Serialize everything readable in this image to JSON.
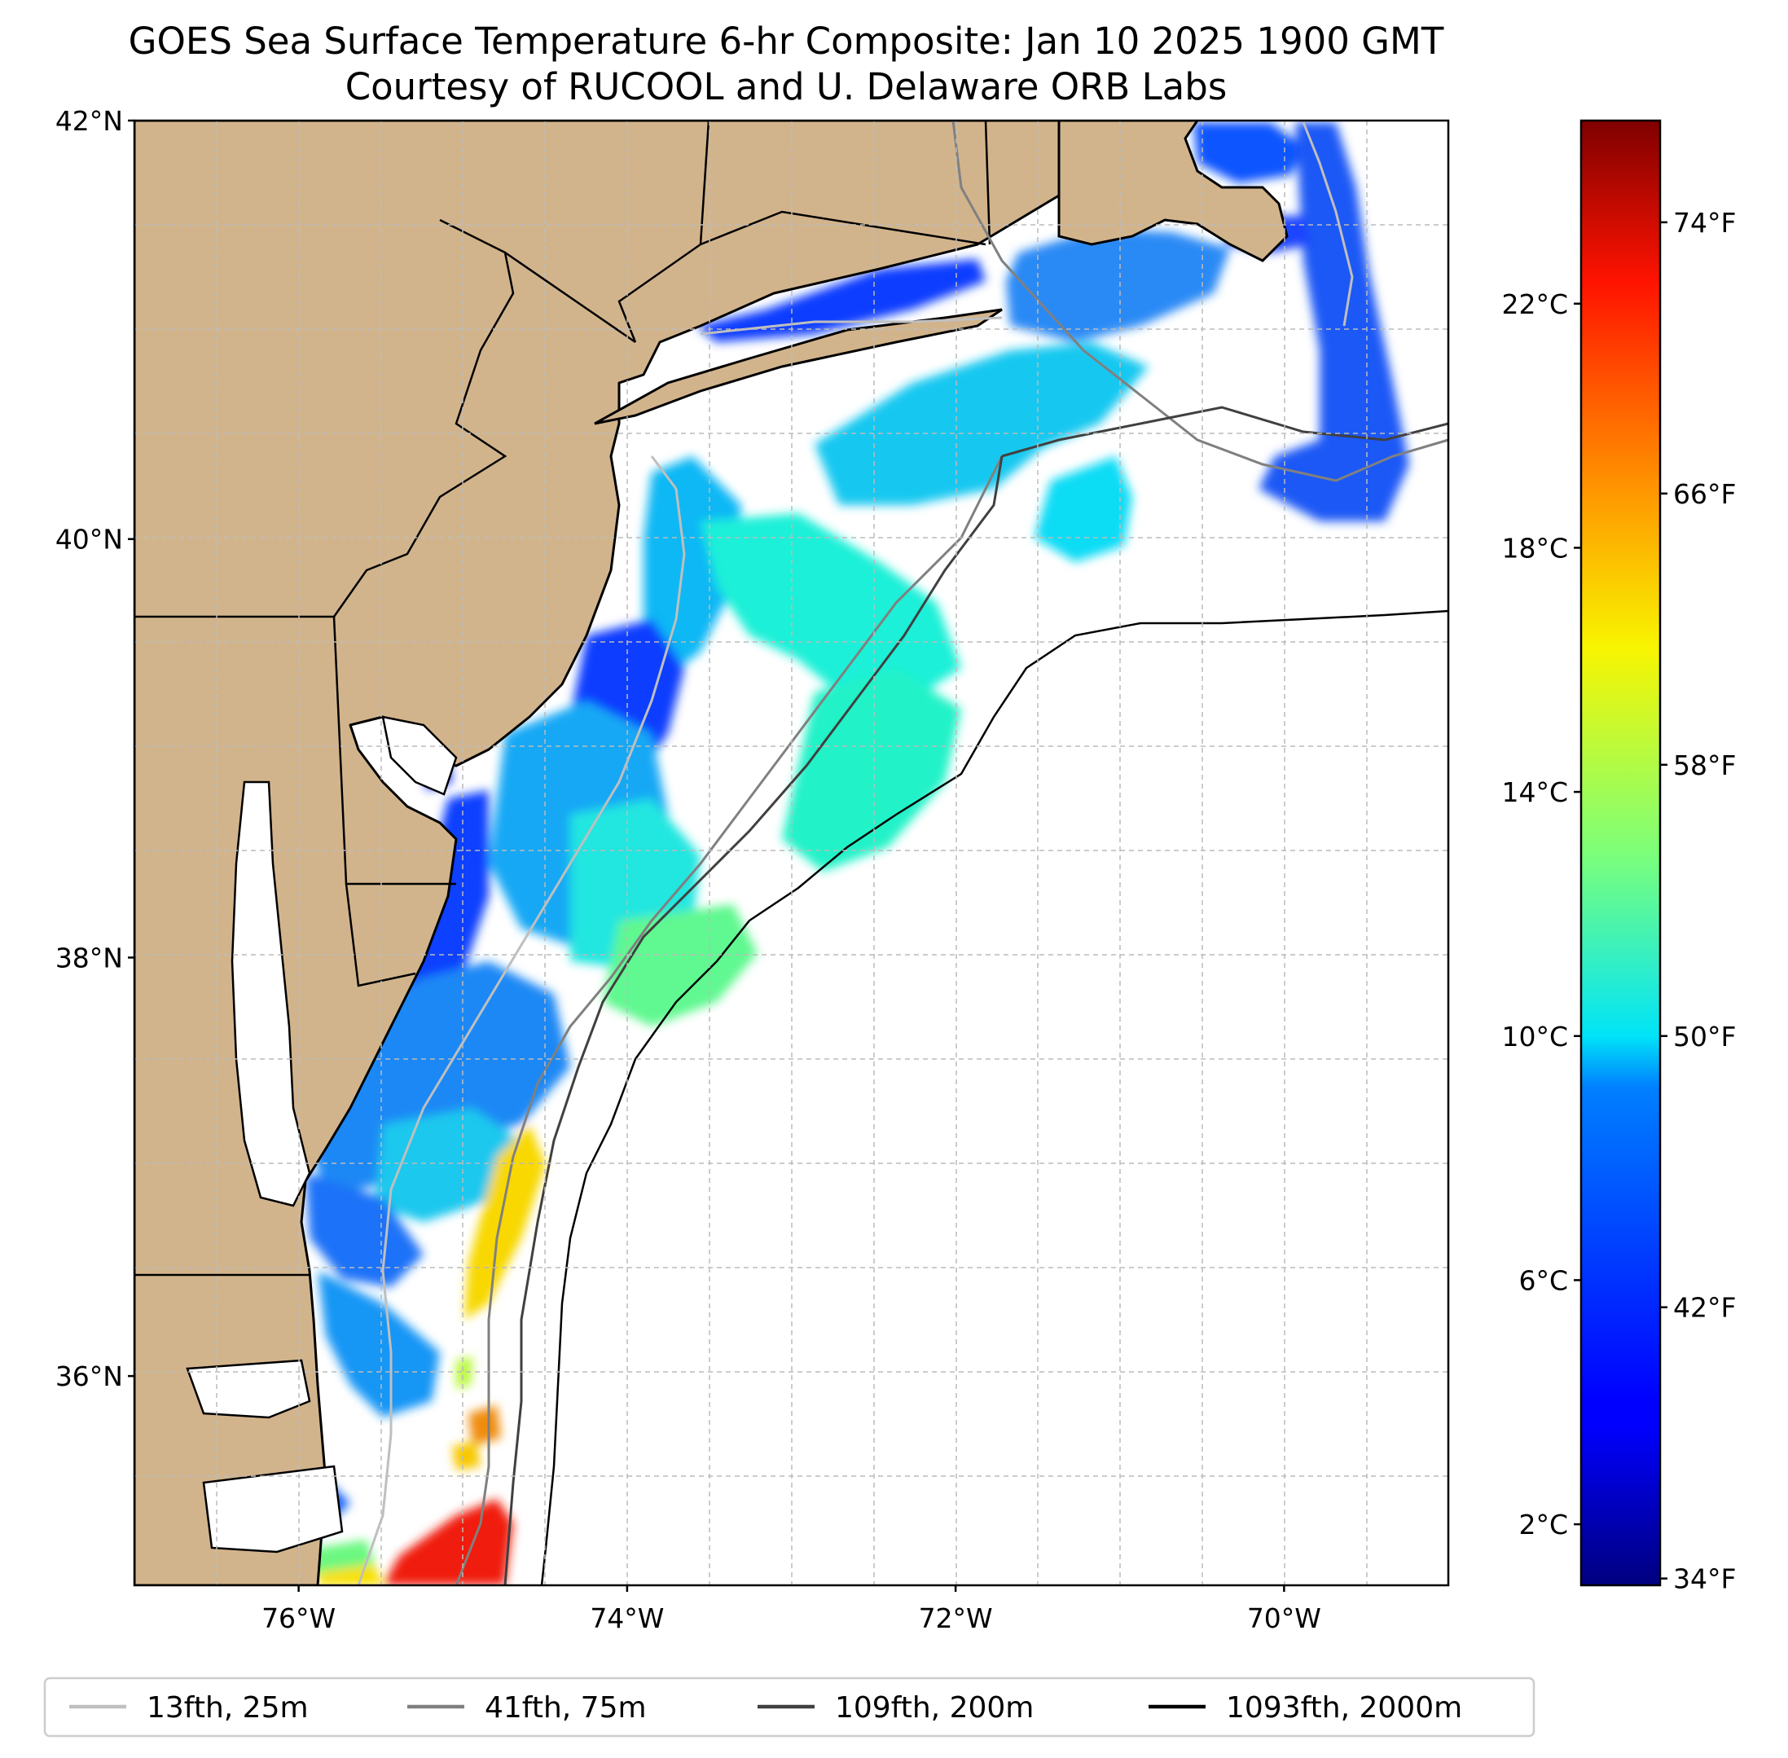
{
  "title": {
    "line1": "GOES Sea Surface Temperature 6-hr Composite: Jan 10 2025 1900 GMT",
    "line2": "Courtesy of RUCOOL and U. Delaware ORB Labs"
  },
  "map": {
    "extent": {
      "lon_min": -77,
      "lon_max": -69,
      "lat_min": 35.0,
      "lat_max": 42
    },
    "lat_ticks": [
      {
        "value": 42,
        "label": "42°N"
      },
      {
        "value": 40,
        "label": "40°N"
      },
      {
        "value": 38,
        "label": "38°N"
      },
      {
        "value": 36,
        "label": "36°N"
      }
    ],
    "lon_ticks": [
      {
        "value": -76,
        "label": "76°W"
      },
      {
        "value": -74,
        "label": "74°W"
      },
      {
        "value": -72,
        "label": "72°W"
      },
      {
        "value": -70,
        "label": "70°W"
      }
    ],
    "grid": true,
    "colors": {
      "land": "#d2b48c",
      "ocean": "#ffffff",
      "coast": "#000000",
      "grid": "#bbbbbb"
    }
  },
  "colorbar": {
    "colormap": "jet",
    "range_c": [
      1,
      25
    ],
    "celsius_ticks": [
      {
        "value": 2,
        "label": "2°C"
      },
      {
        "value": 6,
        "label": "6°C"
      },
      {
        "value": 10,
        "label": "10°C"
      },
      {
        "value": 14,
        "label": "14°C"
      },
      {
        "value": 18,
        "label": "18°C"
      },
      {
        "value": 22,
        "label": "22°C"
      }
    ],
    "fahrenheit_ticks": [
      {
        "value": 34,
        "label": "34°F"
      },
      {
        "value": 42,
        "label": "42°F"
      },
      {
        "value": 50,
        "label": "50°F"
      },
      {
        "value": 58,
        "label": "58°F"
      },
      {
        "value": 66,
        "label": "66°F"
      },
      {
        "value": 74,
        "label": "74°F"
      }
    ]
  },
  "legend": {
    "placement": "bottom",
    "entries": [
      {
        "label": "13fth, 25m",
        "color": "#bfbfbf"
      },
      {
        "label": "41fth, 75m",
        "color": "#808080"
      },
      {
        "label": "109fth, 200m",
        "color": "#404040"
      },
      {
        "label": "1093fth, 2000m",
        "color": "#000000"
      }
    ]
  }
}
